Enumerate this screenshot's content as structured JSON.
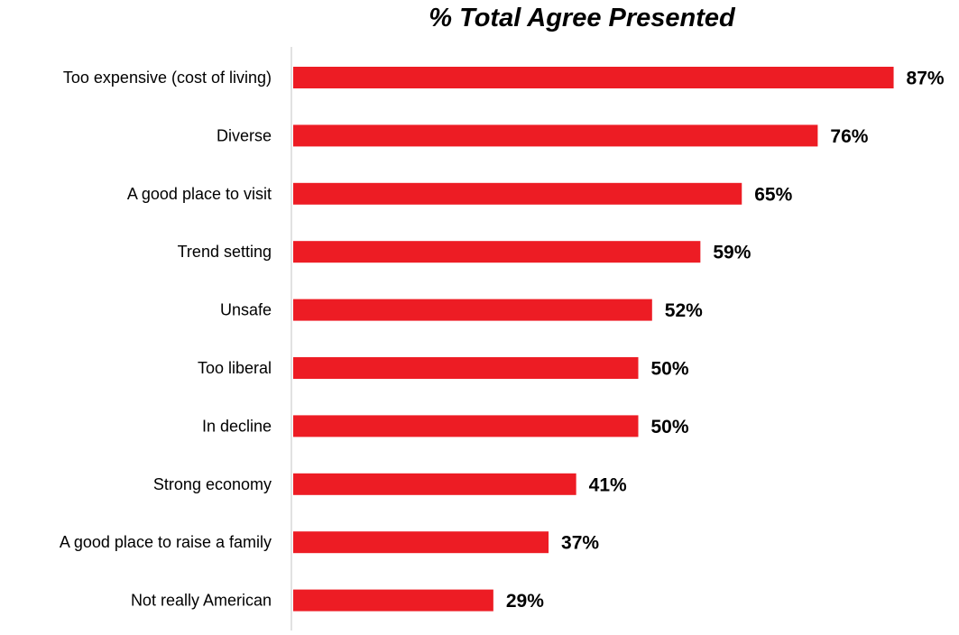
{
  "chart_data": {
    "type": "bar",
    "orientation": "horizontal",
    "title": "% Total Agree Presented",
    "xlabel": "",
    "ylabel": "",
    "xlim": [
      0,
      100
    ],
    "grid": false,
    "legend": "none",
    "bar_color": "#ed1c24",
    "categories": [
      "Too expensive (cost of living)",
      "Diverse",
      "A good place to visit",
      "Trend setting",
      "Unsafe",
      "Too liberal",
      "In decline",
      "Strong economy",
      "A good place to raise a family",
      "Not really American"
    ],
    "values": [
      87,
      76,
      65,
      59,
      52,
      50,
      50,
      41,
      37,
      29
    ],
    "value_labels": [
      "87%",
      "76%",
      "65%",
      "59%",
      "52%",
      "50%",
      "50%",
      "41%",
      "37%",
      "29%"
    ]
  }
}
